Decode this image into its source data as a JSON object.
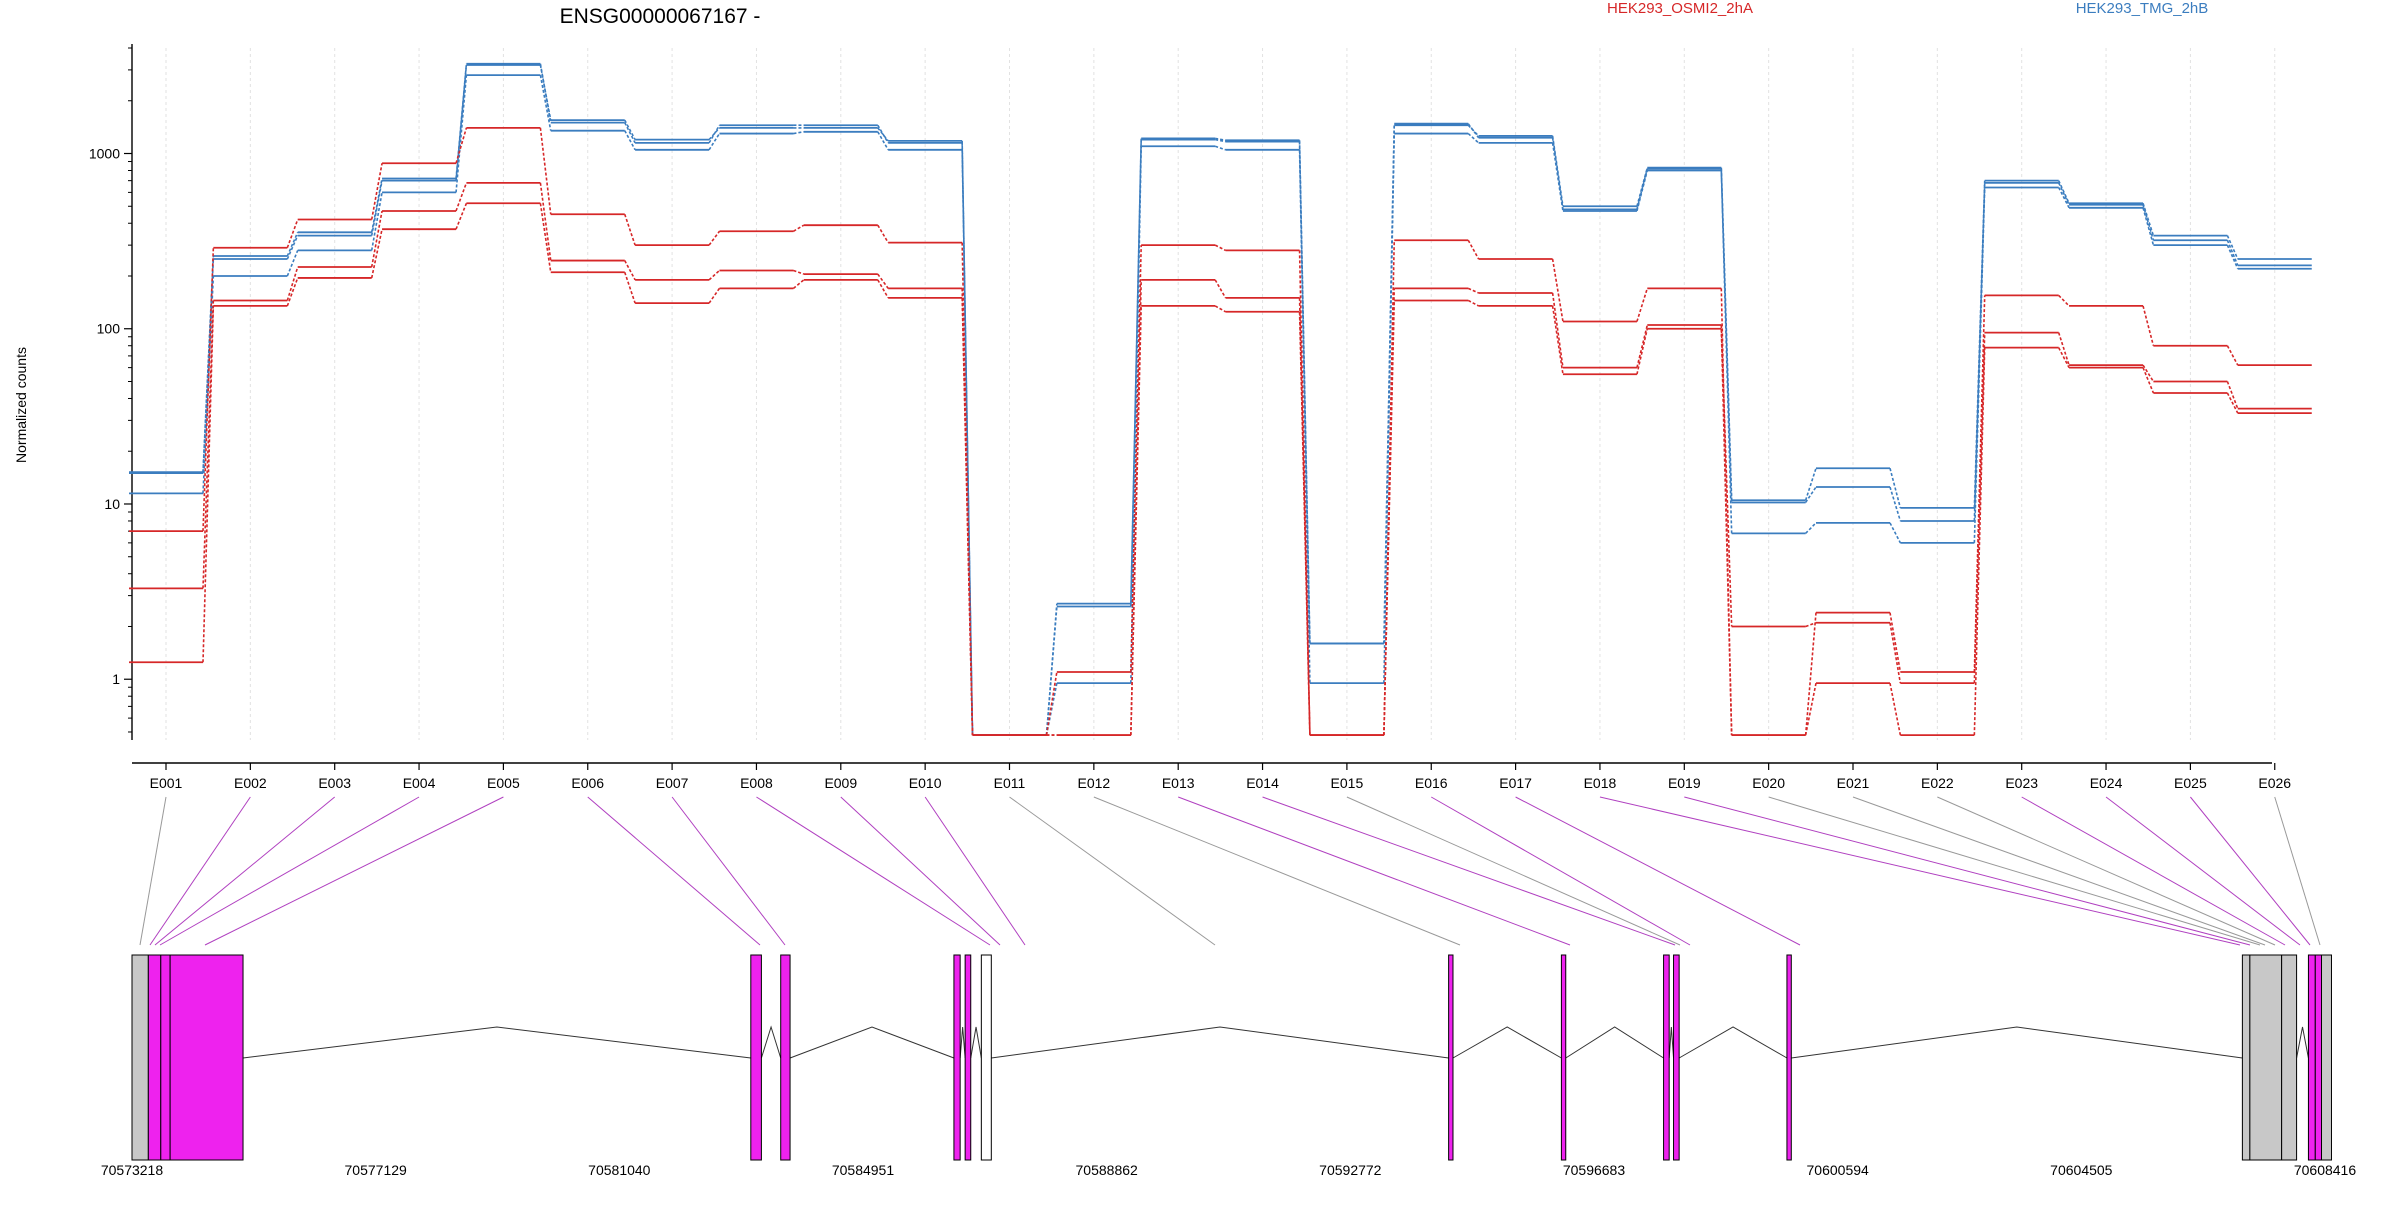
{
  "chart_data": {
    "type": "line",
    "title": "ENSG00000067167 -",
    "ylabel": "Normalized counts",
    "yscale": "log",
    "ylim": [
      0.45,
      4000
    ],
    "yticks": [
      1,
      10,
      100,
      1000
    ],
    "ytick_labels": [
      "1",
      "10",
      "100",
      "1000"
    ],
    "grid": "vertical dotted lines at each exon",
    "legend_position": "top",
    "legend": [
      {
        "label": "HEK293_OSMI2_2hA",
        "color": "#d62728"
      },
      {
        "label": "HEK293_TMG_2hB",
        "color": "#3b7dbf"
      }
    ],
    "categories": [
      "E001",
      "E002",
      "E003",
      "E004",
      "E005",
      "E006",
      "E007",
      "E008",
      "E009",
      "E010",
      "E011",
      "E012",
      "E013",
      "E014",
      "E015",
      "E016",
      "E017",
      "E018",
      "E019",
      "E020",
      "E021",
      "E022",
      "E023",
      "E024",
      "E025",
      "E026"
    ],
    "series": [
      {
        "group": "HEK293_TMG_2hB",
        "color": "#3b7dbf",
        "values": [
          15,
          250,
          340,
          700,
          3200,
          1550,
          1200,
          1400,
          1400,
          1180,
          0.48,
          2.6,
          1220,
          1190,
          1.6,
          1450,
          1260,
          500,
          830,
          10.5,
          16,
          9.5,
          700,
          520,
          340,
          250
        ]
      },
      {
        "group": "HEK293_TMG_2hB",
        "color": "#3b7dbf",
        "values": [
          15.2,
          260,
          355,
          720,
          3250,
          1500,
          1150,
          1450,
          1450,
          1150,
          0.48,
          2.7,
          1200,
          1170,
          1.6,
          1480,
          1230,
          480,
          820,
          10.2,
          12.5,
          8,
          680,
          510,
          320,
          230
        ]
      },
      {
        "group": "HEK293_TMG_2hB",
        "color": "#3b7dbf",
        "values": [
          11.5,
          200,
          280,
          600,
          2800,
          1350,
          1050,
          1300,
          1330,
          1050,
          0.48,
          0.95,
          1100,
          1050,
          0.95,
          1300,
          1150,
          470,
          800,
          6.8,
          7.8,
          6,
          640,
          490,
          300,
          220
        ]
      },
      {
        "group": "HEK293_OSMI2_2hA",
        "color": "#d62728",
        "values": [
          7,
          290,
          420,
          880,
          1400,
          450,
          300,
          360,
          390,
          310,
          0.48,
          1.1,
          300,
          280,
          0.48,
          320,
          250,
          110,
          170,
          0.48,
          2.4,
          1.1,
          155,
          135,
          80,
          62
        ]
      },
      {
        "group": "HEK293_OSMI2_2hA",
        "color": "#d62728",
        "values": [
          3.3,
          145,
          225,
          470,
          680,
          245,
          190,
          215,
          205,
          170,
          0.48,
          0.48,
          190,
          150,
          0.48,
          170,
          160,
          60,
          105,
          2,
          2.1,
          0.95,
          95,
          62,
          50,
          35
        ]
      },
      {
        "group": "HEK293_OSMI2_2hA",
        "color": "#d62728",
        "values": [
          1.25,
          135,
          195,
          370,
          520,
          210,
          140,
          170,
          190,
          150,
          0.48,
          0.48,
          135,
          125,
          0.48,
          145,
          135,
          55,
          100,
          0.48,
          0.95,
          0.48,
          78,
          60,
          43,
          33
        ]
      }
    ],
    "gene_model": {
      "x_ticks": [
        "70573218",
        "70577129",
        "70581040",
        "70584951",
        "70588862",
        "70592772",
        "70596683",
        "70600594",
        "70604505",
        "70608416"
      ],
      "range": [
        70573218,
        70608416
      ],
      "exons": [
        {
          "start": 70573218,
          "end": 70573480,
          "color": "#c8c8c8"
        },
        {
          "start": 70573480,
          "end": 70573680,
          "color": "#ee22ee"
        },
        {
          "start": 70573680,
          "end": 70573830,
          "color": "#ee22ee"
        },
        {
          "start": 70573830,
          "end": 70575000,
          "color": "#ee22ee"
        },
        {
          "start": 70583150,
          "end": 70583320,
          "color": "#ee22ee"
        },
        {
          "start": 70583630,
          "end": 70583780,
          "color": "#ee22ee"
        },
        {
          "start": 70586410,
          "end": 70586510,
          "color": "#ee22ee"
        },
        {
          "start": 70586590,
          "end": 70586680,
          "color": "#ee22ee"
        },
        {
          "start": 70586850,
          "end": 70587010,
          "color": "#ffffff"
        },
        {
          "start": 70594350,
          "end": 70594420,
          "color": "#ee22ee"
        },
        {
          "start": 70596160,
          "end": 70596230,
          "color": "#ee22ee"
        },
        {
          "start": 70597800,
          "end": 70597890,
          "color": "#ee22ee"
        },
        {
          "start": 70597960,
          "end": 70598050,
          "color": "#ee22ee"
        },
        {
          "start": 70599780,
          "end": 70599850,
          "color": "#ee22ee"
        },
        {
          "start": 70607090,
          "end": 70607210,
          "color": "#c8c8c8"
        },
        {
          "start": 70607210,
          "end": 70607720,
          "color": "#c8c8c8"
        },
        {
          "start": 70607720,
          "end": 70607960,
          "color": "#c8c8c8"
        },
        {
          "start": 70608150,
          "end": 70608260,
          "color": "#ee22ee"
        },
        {
          "start": 70608260,
          "end": 70608360,
          "color": "#ee22ee"
        },
        {
          "start": 70608360,
          "end": 70608520,
          "color": "#c8c8c8"
        }
      ]
    }
  }
}
